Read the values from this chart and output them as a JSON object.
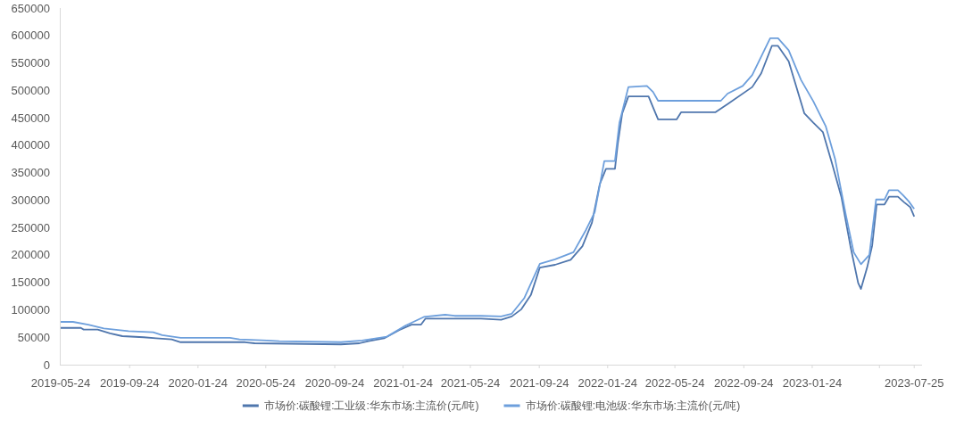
{
  "chart_data": {
    "type": "line",
    "xlim": [
      "2019-05-24",
      "2023-08-08"
    ],
    "xticks": [
      "2019-05-24",
      "2019-09-24",
      "2020-01-24",
      "2020-05-24",
      "2020-09-24",
      "2021-01-24",
      "2021-05-24",
      "2021-09-24",
      "2022-01-24",
      "2022-05-24",
      "2022-09-24",
      "2023-01-24",
      {
        "value": "2023-05-24",
        "label": null
      },
      "2023-07-25"
    ],
    "ylim": [
      0,
      650000
    ],
    "yticks": [
      0,
      50000,
      100000,
      150000,
      200000,
      250000,
      300000,
      350000,
      400000,
      450000,
      500000,
      550000,
      600000,
      650000
    ],
    "grid": false,
    "legend": "bottom",
    "series": [
      {
        "name": "市场价:碳酸锂:工业级:华东市场:主流价(元/吨)",
        "color": "#4f76ad",
        "x": [
          "2019-05-24",
          "2019-06-29",
          "2019-07-04",
          "2019-07-29",
          "2019-08-20",
          "2019-09-11",
          "2019-10-19",
          "2019-11-10",
          "2019-12-08",
          "2019-12-24",
          "2020-04-17",
          "2020-05-04",
          "2020-10-05",
          "2020-11-07",
          "2020-11-23",
          "2020-12-21",
          "2021-01-17",
          "2021-02-08",
          "2021-02-25",
          "2021-03-05",
          "2021-06-12",
          "2021-07-18",
          "2021-08-06",
          "2021-08-23",
          "2021-09-09",
          "2021-09-25",
          "2021-10-22",
          "2021-11-19",
          "2021-12-10",
          "2021-12-27",
          "2022-01-10",
          "2022-01-21",
          "2022-02-06",
          "2022-02-11",
          "2022-02-19",
          "2022-03-02",
          "2022-04-07",
          "2022-04-15",
          "2022-04-24",
          "2022-05-27",
          "2022-06-04",
          "2022-08-04",
          "2022-08-26",
          "2022-10-09",
          "2022-10-25",
          "2022-11-13",
          "2022-11-24",
          "2022-12-13",
          "2023-01-10",
          "2023-01-26",
          "2023-02-12",
          "2023-02-28",
          "2023-03-17",
          "2023-04-02",
          "2023-04-16",
          "2023-04-21",
          "2023-05-02",
          "2023-05-11",
          "2023-05-19",
          "2023-06-02",
          "2023-06-10",
          "2023-06-26",
          "2023-07-07",
          "2023-07-18",
          "2023-07-25"
        ],
        "values": [
          67000,
          67000,
          64000,
          64000,
          57000,
          52000,
          50000,
          48000,
          46000,
          41000,
          41000,
          39000,
          37000,
          39000,
          43000,
          48000,
          63000,
          73000,
          73000,
          84000,
          84000,
          82000,
          88000,
          101000,
          127000,
          177000,
          182000,
          191000,
          216000,
          259000,
          329000,
          357000,
          357000,
          402000,
          458000,
          489000,
          489000,
          469000,
          447000,
          447000,
          460000,
          460000,
          475000,
          506000,
          531000,
          581000,
          581000,
          553000,
          458000,
          441000,
          424000,
          368000,
          306000,
          217000,
          149000,
          138000,
          177000,
          217000,
          292000,
          292000,
          306000,
          306000,
          296000,
          287000,
          270000
        ]
      },
      {
        "name": "市场价:碳酸锂:电池级:华东市场:主流价(元/吨)",
        "color": "#6d9fdc",
        "x": [
          "2019-05-24",
          "2019-06-15",
          "2019-07-12",
          "2019-08-09",
          "2019-09-22",
          "2019-11-05",
          "2019-11-21",
          "2019-12-24",
          "2020-03-21",
          "2020-04-07",
          "2020-05-26",
          "2020-06-17",
          "2020-10-05",
          "2020-11-12",
          "2020-12-26",
          "2021-01-28",
          "2021-03-02",
          "2021-04-09",
          "2021-04-26",
          "2021-06-12",
          "2021-07-18",
          "2021-08-06",
          "2021-08-28",
          "2021-09-25",
          "2021-10-22",
          "2021-11-24",
          "2021-12-16",
          "2022-01-01",
          "2022-01-18",
          "2022-02-06",
          "2022-02-14",
          "2022-03-02",
          "2022-04-04",
          "2022-04-15",
          "2022-04-24",
          "2022-08-14",
          "2022-08-26",
          "2022-09-22",
          "2022-10-09",
          "2022-11-10",
          "2022-11-24",
          "2022-12-13",
          "2023-01-04",
          "2023-01-26",
          "2023-02-17",
          "2023-03-06",
          "2023-03-25",
          "2023-04-08",
          "2023-04-21",
          "2023-05-06",
          "2023-05-18",
          "2023-06-02",
          "2023-06-10",
          "2023-06-26",
          "2023-07-05",
          "2023-07-15",
          "2023-07-25"
        ],
        "values": [
          78000,
          78000,
          73000,
          66000,
          61000,
          59000,
          54000,
          49000,
          49000,
          46000,
          44000,
          43000,
          41000,
          44000,
          51000,
          71000,
          87000,
          91000,
          89000,
          89000,
          88000,
          93000,
          121000,
          184000,
          192000,
          205000,
          245000,
          278000,
          371000,
          371000,
          441000,
          506000,
          508000,
          497000,
          481000,
          481000,
          494000,
          508000,
          528000,
          595000,
          595000,
          573000,
          519000,
          480000,
          435000,
          374000,
          273000,
          205000,
          183000,
          200000,
          301000,
          301000,
          318000,
          318000,
          309000,
          298000,
          284000
        ]
      }
    ]
  }
}
